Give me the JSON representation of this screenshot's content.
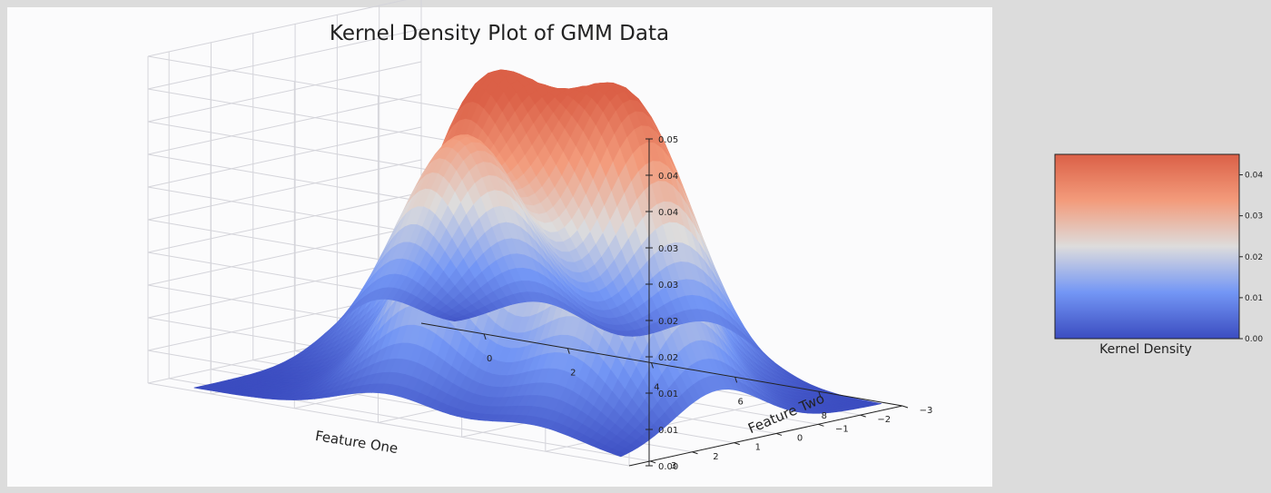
{
  "chart_data": {
    "type": "surface",
    "title": "Kernel Density Plot of GMM Data",
    "xlabel": "Feature One",
    "ylabel": "Feature Two",
    "zlabel": "",
    "xlim": [
      -1.5,
      10
    ],
    "ylim": [
      -3,
      3.5
    ],
    "zlim": [
      0,
      0.05
    ],
    "x_ticks": [
      "0",
      "2",
      "4",
      "6",
      "8"
    ],
    "y_ticks": [
      "−3",
      "−2",
      "−1",
      "0",
      "1",
      "2",
      "3"
    ],
    "z_ticks": [
      "0.00",
      "0.01",
      "0.01",
      "0.02",
      "0.02",
      "0.03",
      "0.03",
      "0.04",
      "0.04",
      "0.05"
    ],
    "peaks": [
      {
        "x": 1.5,
        "y": -1.0,
        "density": 0.034
      },
      {
        "x": 4.0,
        "y": 1.0,
        "density": 0.045
      },
      {
        "x": 5.5,
        "y": -1.0,
        "density": 0.041
      },
      {
        "x": 7.5,
        "y": 1.0,
        "density": 0.035
      }
    ],
    "grid": true,
    "colormap": [
      "#3b4cc0",
      "#7396f5",
      "#dddcdc",
      "#f39b7b",
      "#db6047"
    ],
    "colorbar": {
      "label": "Kernel Density",
      "ticks": [
        "0.00",
        "0.01",
        "0.02",
        "0.03",
        "0.04"
      ],
      "range": [
        0,
        0.045
      ]
    }
  },
  "colors": {
    "background": "#dcdcdc",
    "panel": "#fbfbfc",
    "low": "#3b4cc0",
    "high": "#db6047"
  }
}
